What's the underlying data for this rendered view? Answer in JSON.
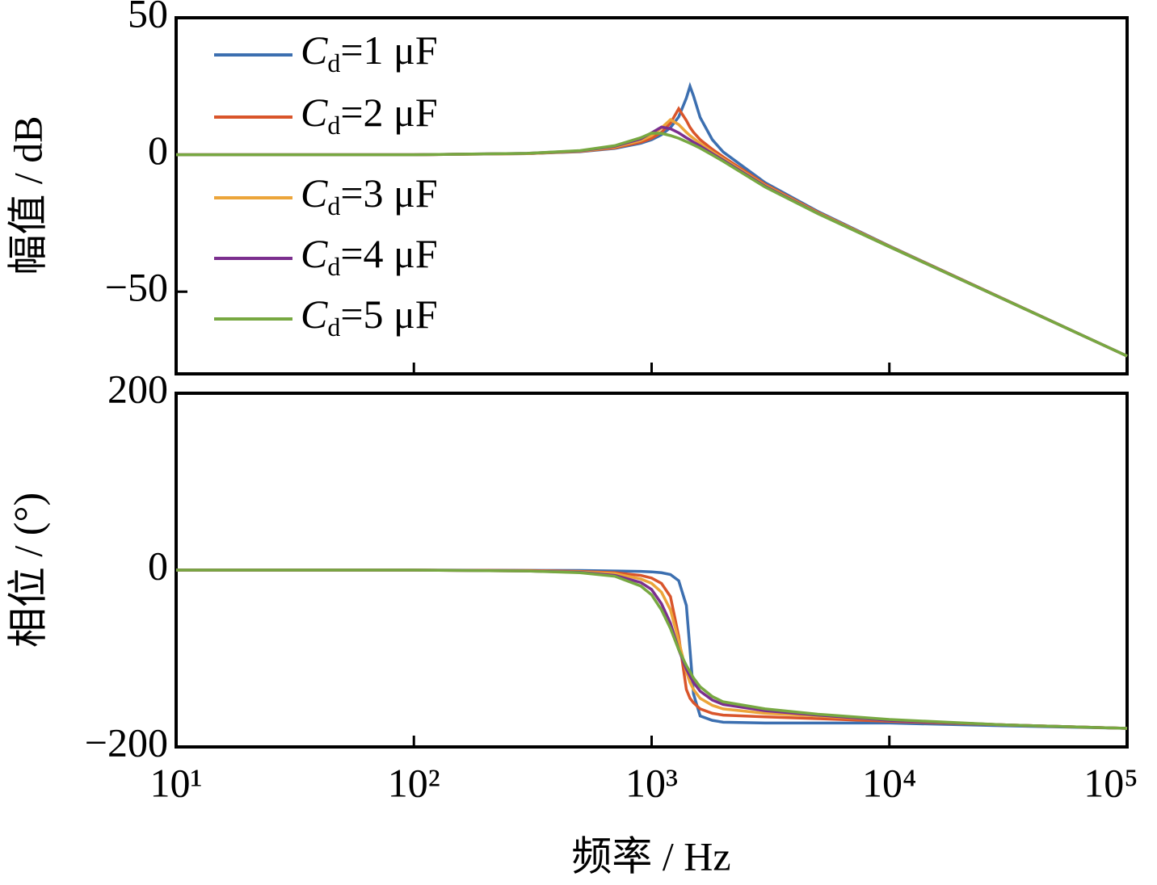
{
  "chart_data": [
    {
      "type": "line",
      "ylabel": "幅值 / dB",
      "xscale": "log",
      "xlim": [
        10,
        100000
      ],
      "ylim": [
        -80,
        50
      ],
      "yticks": [
        {
          "value": -50,
          "label": "−50"
        },
        0,
        50
      ],
      "legend": "upper left",
      "x": [
        10,
        100,
        300,
        500,
        700,
        900,
        1000,
        1100,
        1200,
        1300,
        1400,
        1450,
        1500,
        1600,
        1800,
        2000,
        3000,
        5000,
        10000,
        30000,
        100000
      ],
      "series": [
        {
          "name": "Cd=1 μF",
          "color": "#3c6fb0",
          "values": [
            0,
            0,
            0.4,
            1.1,
            2.3,
            4.2,
            5.5,
            7.3,
            9.9,
            13.8,
            20.7,
            25,
            21.5,
            13.6,
            5.5,
            1.0,
            -10.2,
            -20.7,
            -33.3,
            -52.5,
            -73.5
          ]
        },
        {
          "name": "Cd=2 μF",
          "color": "#d9552b",
          "values": [
            0,
            0,
            0.4,
            1.2,
            2.5,
            4.6,
            6.0,
            8.2,
            11.5,
            16.8,
            12.5,
            10,
            8.2,
            5.5,
            2.0,
            -0.8,
            -10.8,
            -21,
            -33.4,
            -52.5,
            -73.5
          ]
        },
        {
          "name": "Cd=3 μF",
          "color": "#eca53a",
          "values": [
            0,
            0,
            0.4,
            1.3,
            2.8,
            5.2,
            7.0,
            9.8,
            12.8,
            11,
            8.2,
            7,
            6,
            4.1,
            1.0,
            -1.5,
            -11.2,
            -21.2,
            -33.5,
            -52.6,
            -73.5
          ]
        },
        {
          "name": "Cd=4 μF",
          "color": "#7b2f8e",
          "values": [
            0,
            0,
            0.5,
            1.4,
            3.1,
            5.8,
            8.0,
            10.1,
            9.5,
            8,
            6.2,
            5.4,
            4.6,
            3.2,
            0.4,
            -2.0,
            -11.5,
            -21.4,
            -33.6,
            -52.6,
            -73.5
          ]
        },
        {
          "name": "Cd=5 μF",
          "color": "#77a841",
          "values": [
            0,
            0,
            0.5,
            1.5,
            3.3,
            6.2,
            7.9,
            7.8,
            7.0,
            6.0,
            4.8,
            4.2,
            3.6,
            2.4,
            -0.1,
            -2.4,
            -11.8,
            -21.5,
            -33.6,
            -52.6,
            -73.5
          ]
        }
      ]
    },
    {
      "type": "line",
      "ylabel": "相位 / (°)",
      "xlabel": "频率 / Hz",
      "xscale": "log",
      "xlim": [
        10,
        100000
      ],
      "xticks": [
        {
          "value": 10,
          "label": "10¹"
        },
        {
          "value": 100,
          "label": "10²"
        },
        {
          "value": 1000,
          "label": "10³"
        },
        {
          "value": 10000,
          "label": "10⁴"
        },
        {
          "value": 100000,
          "label": "10⁵"
        }
      ],
      "ylim": [
        -200,
        200
      ],
      "yticks": [
        {
          "value": -200,
          "label": "−200"
        },
        0,
        200
      ],
      "x": [
        10,
        100,
        300,
        500,
        700,
        900,
        1000,
        1100,
        1200,
        1300,
        1400,
        1450,
        1500,
        1600,
        1800,
        2000,
        3000,
        5000,
        10000,
        30000,
        100000
      ],
      "series": [
        {
          "color": "#3c6fb0",
          "values": [
            0,
            0,
            -0.3,
            -0.5,
            -1,
            -1.5,
            -2,
            -3,
            -5,
            -12,
            -40,
            -90,
            -140,
            -165,
            -170,
            -172,
            -173,
            -173,
            -173,
            -176,
            -179
          ]
        },
        {
          "color": "#d9552b",
          "values": [
            0,
            0,
            -0.5,
            -1.5,
            -3,
            -6,
            -9,
            -15,
            -30,
            -75,
            -135,
            -145,
            -150,
            -157,
            -162,
            -164,
            -166,
            -168,
            -171,
            -175,
            -179
          ]
        },
        {
          "color": "#eca53a",
          "values": [
            0,
            0,
            -1,
            -2,
            -4,
            -10,
            -15,
            -25,
            -45,
            -80,
            -115,
            -127,
            -135,
            -145,
            -153,
            -157,
            -162,
            -165,
            -170,
            -175,
            -179
          ]
        },
        {
          "color": "#7b2f8e",
          "values": [
            0,
            0,
            -1,
            -2.5,
            -6,
            -14,
            -22,
            -38,
            -60,
            -90,
            -112,
            -120,
            -127,
            -137,
            -147,
            -152,
            -159,
            -164,
            -170,
            -175,
            -179
          ]
        },
        {
          "color": "#77a841",
          "values": [
            0,
            0,
            -1,
            -3,
            -7,
            -18,
            -28,
            -45,
            -66,
            -90,
            -108,
            -115,
            -122,
            -132,
            -143,
            -149,
            -157,
            -163,
            -169,
            -175,
            -179
          ]
        }
      ]
    }
  ]
}
